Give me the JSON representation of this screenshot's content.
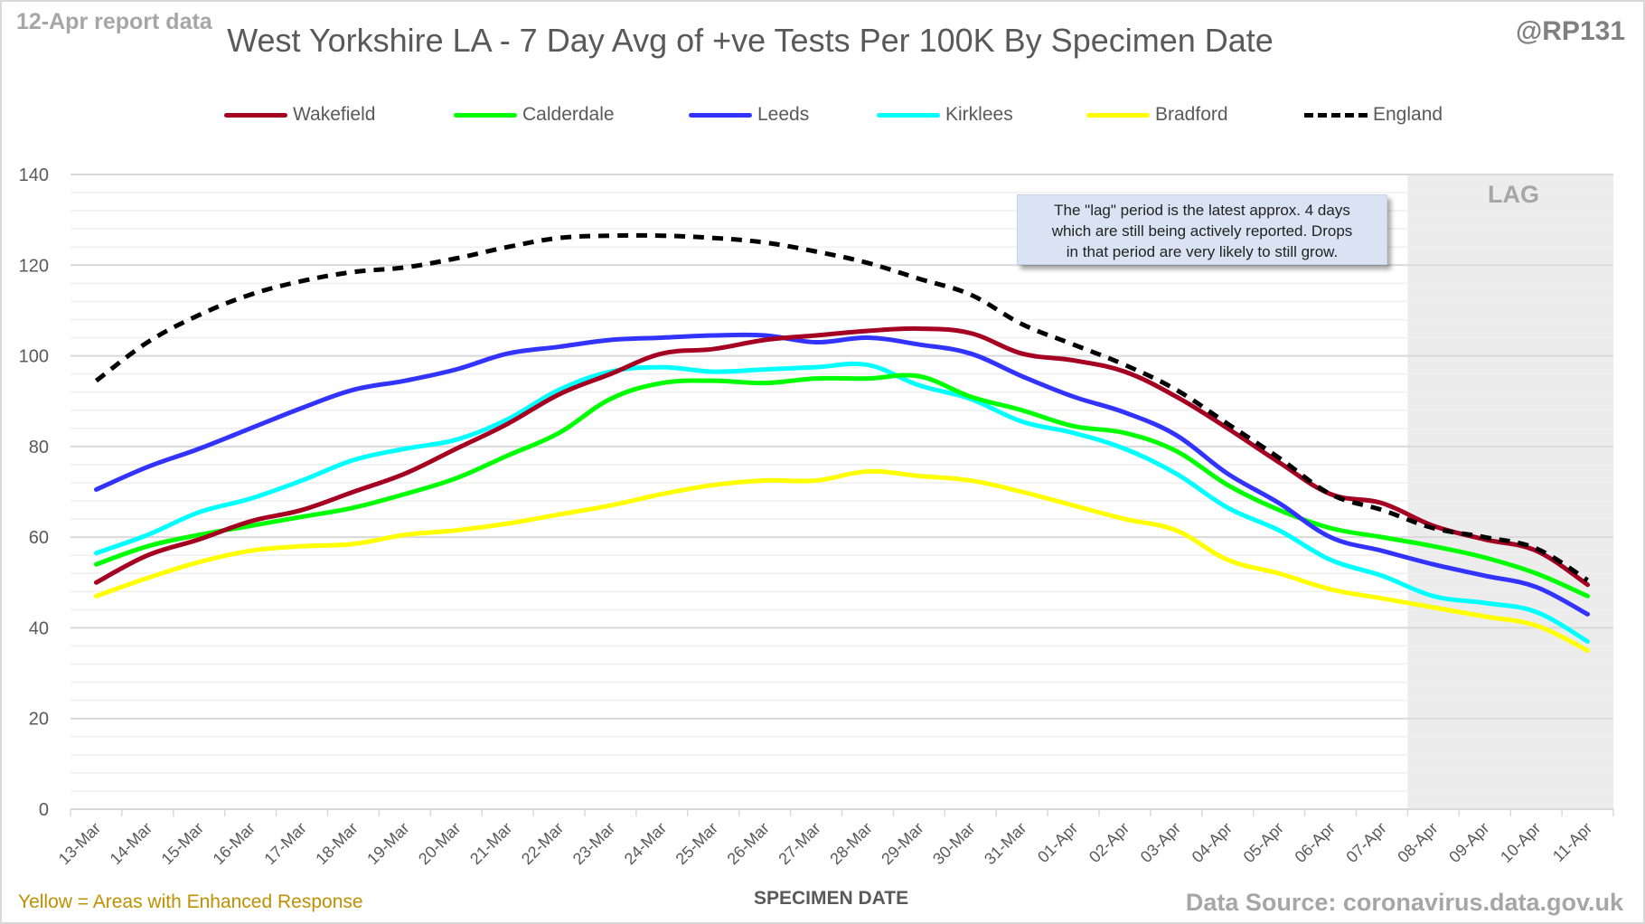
{
  "header": {
    "report_tag": "12-Apr report data",
    "title": "West Yorkshire LA - 7 Day Avg of +ve Tests Per 100K By Specimen Date",
    "handle": "@RP131"
  },
  "footer": {
    "note": "Yellow = Areas with Enhanced Response",
    "source": "Data Source: coronavirus.data.gov.uk"
  },
  "annotation": {
    "lines": [
      "The \"lag\" period is the latest approx. 4 days",
      "which are still being actively reported.  Drops",
      "in that period are very likely to still grow."
    ],
    "lag_label": "LAG"
  },
  "chart_data": {
    "type": "line",
    "title": "West Yorkshire LA - 7 Day Avg of +ve Tests Per 100K By Specimen Date",
    "xlabel": "SPECIMEN DATE",
    "ylabel": "",
    "ylim": [
      0,
      140
    ],
    "yticks": [
      0,
      20,
      40,
      60,
      80,
      100,
      120,
      140
    ],
    "grid": true,
    "legend_position": "top",
    "lag_region": {
      "start": "08-Apr",
      "end": "11-Apr",
      "label": "LAG"
    },
    "x": [
      "13-Mar",
      "14-Mar",
      "15-Mar",
      "16-Mar",
      "17-Mar",
      "18-Mar",
      "19-Mar",
      "20-Mar",
      "21-Mar",
      "22-Mar",
      "23-Mar",
      "24-Mar",
      "25-Mar",
      "26-Mar",
      "27-Mar",
      "28-Mar",
      "29-Mar",
      "30-Mar",
      "31-Mar",
      "01-Apr",
      "02-Apr",
      "03-Apr",
      "04-Apr",
      "05-Apr",
      "06-Apr",
      "07-Apr",
      "08-Apr",
      "09-Apr",
      "10-Apr",
      "11-Apr"
    ],
    "series": [
      {
        "name": "Wakefield",
        "color": "#a50021",
        "dashed": false,
        "values": [
          50,
          56,
          59.5,
          63.5,
          66,
          70,
          74,
          79.5,
          85,
          91.5,
          96,
          100.5,
          101.5,
          103.5,
          104.5,
          105.5,
          106,
          105,
          100.5,
          99,
          96.5,
          91,
          84,
          76.5,
          69.5,
          67.5,
          62.5,
          59.5,
          57,
          49.5
        ]
      },
      {
        "name": "Calderdale",
        "color": "#00ff00",
        "dashed": false,
        "values": [
          54,
          58,
          60.5,
          62.5,
          64.5,
          66.5,
          69.5,
          73,
          78,
          83,
          90.5,
          94,
          94.5,
          94,
          95,
          95,
          95.5,
          91,
          88,
          84.5,
          83,
          79,
          71.5,
          66,
          62,
          60,
          58,
          55.5,
          52,
          47
        ]
      },
      {
        "name": "Leeds",
        "color": "#3333ff",
        "dashed": false,
        "values": [
          70.5,
          75.5,
          79.5,
          84,
          88.5,
          92.5,
          94.5,
          97,
          100.5,
          102,
          103.5,
          104,
          104.5,
          104.5,
          103,
          104,
          102.5,
          100.5,
          95.5,
          91,
          87.5,
          82.5,
          74,
          67.5,
          60,
          57,
          54,
          51.5,
          49,
          43
        ]
      },
      {
        "name": "Kirklees",
        "color": "#00ffff",
        "dashed": false,
        "values": [
          56.5,
          60.5,
          65.5,
          68.5,
          72.5,
          77,
          79.5,
          81.5,
          86,
          92.5,
          96.5,
          97.5,
          96.5,
          97,
          97.5,
          98,
          93.5,
          90.5,
          85.5,
          83,
          79.5,
          74,
          66.5,
          61.5,
          55,
          51.5,
          47,
          45.5,
          43.5,
          37
        ]
      },
      {
        "name": "Bradford",
        "color": "#ffff00",
        "dashed": false,
        "values": [
          47,
          51,
          54.5,
          57,
          58,
          58.5,
          60.5,
          61.5,
          63,
          65,
          67,
          69.5,
          71.5,
          72.5,
          72.5,
          74.5,
          73.5,
          72.5,
          70,
          67,
          64,
          61.5,
          55,
          52,
          48.5,
          46.5,
          44.5,
          42.5,
          40.5,
          35
        ]
      },
      {
        "name": "England",
        "color": "#000000",
        "dashed": true,
        "values": [
          94.5,
          103,
          109,
          113.5,
          116.5,
          118.5,
          119.5,
          121.5,
          124,
          126,
          126.5,
          126.5,
          126,
          125,
          123,
          120.5,
          117,
          113.5,
          107,
          102.5,
          98,
          92.5,
          85,
          77.5,
          69.5,
          66,
          62,
          60,
          57.5,
          50.5
        ]
      }
    ]
  }
}
